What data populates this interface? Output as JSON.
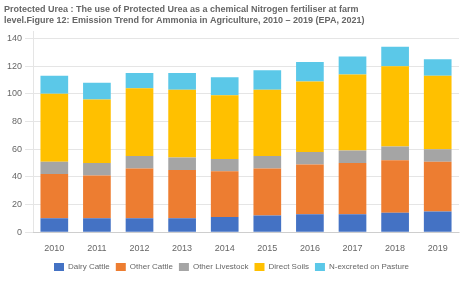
{
  "chart_data": {
    "type": "bar",
    "stacked": true,
    "title": [
      "Protected Urea : The use of Protected Urea as a chemical Nitrogen fertiliser at farm",
      "level.Figure 12: Emission Trend for Ammonia in Agriculture, 2010 – 2019 (EPA, 2021)"
    ],
    "categories": [
      "2010",
      "2011",
      "2012",
      "2013",
      "2014",
      "2015",
      "2016",
      "2017",
      "2018",
      "2019"
    ],
    "series": [
      {
        "name": "Dairy Cattle",
        "color": "#4472c4",
        "values": [
          10,
          10,
          10,
          10,
          11,
          12,
          13,
          13,
          14,
          15
        ]
      },
      {
        "name": "Other Cattle",
        "color": "#ed7d31",
        "values": [
          32,
          31,
          36,
          35,
          33,
          34,
          36,
          37,
          38,
          36
        ]
      },
      {
        "name": "Other Livestock",
        "color": "#a5a5a5",
        "values": [
          9,
          9,
          9,
          9,
          9,
          9,
          9,
          9,
          10,
          9
        ]
      },
      {
        "name": "Direct Soils",
        "color": "#ffc000",
        "values": [
          49,
          46,
          49,
          49,
          46,
          48,
          51,
          55,
          58,
          53
        ]
      },
      {
        "name": "N-excreted on Pasture",
        "color": "#5bc8e8",
        "values": [
          13,
          12,
          11,
          12,
          13,
          14,
          14,
          13,
          14,
          12
        ]
      }
    ],
    "ylim": [
      0,
      145
    ],
    "yticks": [
      0,
      20,
      40,
      60,
      80,
      100,
      120,
      140
    ],
    "grid": true,
    "legend": "bottom"
  }
}
